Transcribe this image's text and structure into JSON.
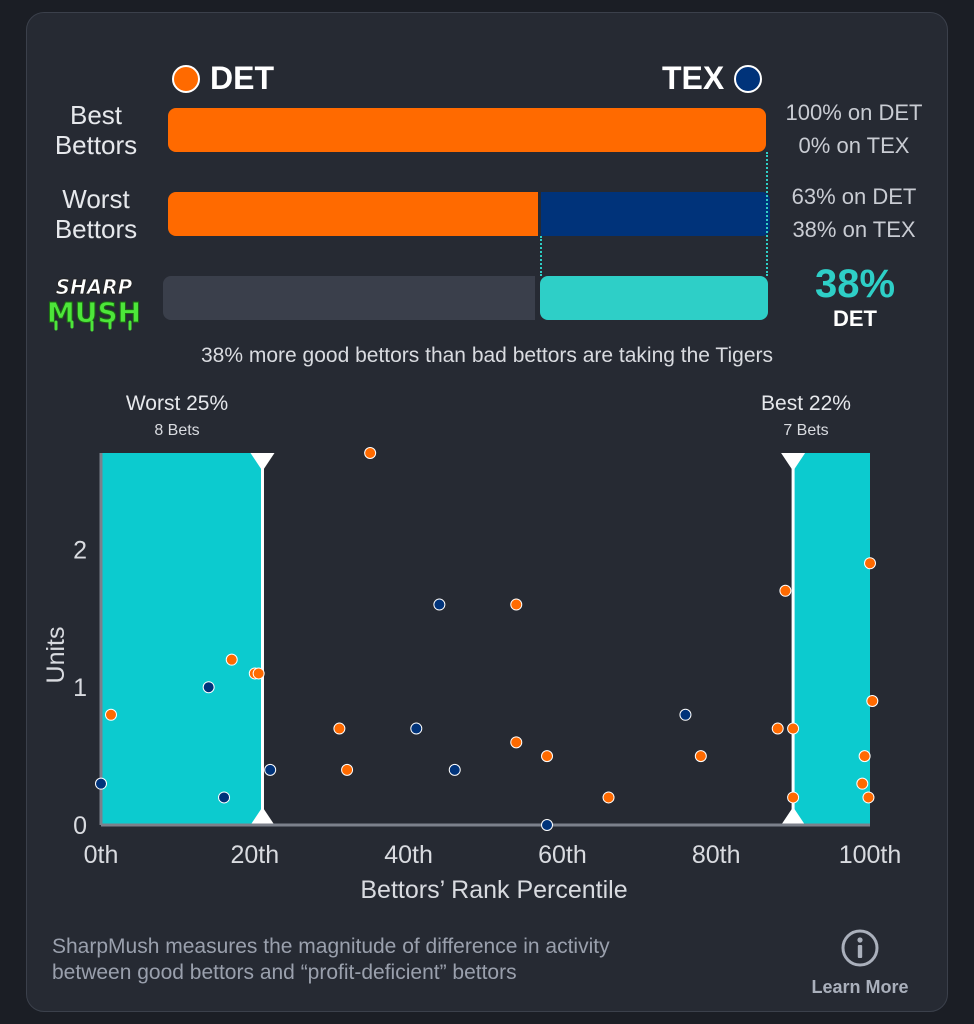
{
  "teams": {
    "left": {
      "abbr": "DET",
      "color": "#ff6a00"
    },
    "right": {
      "abbr": "TEX",
      "color": "#00337a"
    }
  },
  "rows": {
    "best": {
      "label_line1": "Best",
      "label_line2": "Bettors",
      "det_pct": 100,
      "tex_pct": 0,
      "det_text": "100% on DET",
      "tex_text": "0% on TEX"
    },
    "worst": {
      "label_line1": "Worst",
      "label_line2": "Bettors",
      "det_pct": 63,
      "tex_pct": 38,
      "det_text": "63% on DET",
      "tex_text": "38% on TEX"
    }
  },
  "sharpmush": {
    "logo_line1": "SHARP",
    "logo_line2": "MUSH",
    "value_pct": 38,
    "value_text": "38%",
    "team": "DET",
    "summary": "38% more good bettors than bad bettors are taking the Tigers"
  },
  "groups": {
    "worst": {
      "title": "Worst 25%",
      "bets": "8 Bets"
    },
    "best": {
      "title": "Best 22%",
      "bets": "7 Bets"
    }
  },
  "chart_data": {
    "type": "scatter",
    "xlabel": "Bettors’ Rank Percentile",
    "ylabel": "Units",
    "x_ticks": [
      "0th",
      "20th",
      "40th",
      "60th",
      "80th",
      "100th"
    ],
    "x_tick_values": [
      0,
      20,
      40,
      60,
      80,
      100
    ],
    "y_ticks": [
      "0",
      "1",
      "2"
    ],
    "y_tick_values": [
      0,
      1,
      2
    ],
    "xlim": [
      0,
      100
    ],
    "ylim": [
      0,
      2.7
    ],
    "worst_zone": [
      0,
      21
    ],
    "best_zone": [
      90,
      100
    ],
    "zone_color": "#0ccbcf",
    "series": [
      {
        "team": "DET",
        "color": "#ff6a00",
        "points": [
          [
            1.3,
            0.8
          ],
          [
            17,
            1.2
          ],
          [
            20,
            1.1
          ],
          [
            20.5,
            1.1
          ],
          [
            31,
            0.7
          ],
          [
            32,
            0.4
          ],
          [
            35,
            2.7
          ],
          [
            54,
            1.6
          ],
          [
            54,
            0.6
          ],
          [
            58,
            0.5
          ],
          [
            66,
            0.2
          ],
          [
            78,
            0.5
          ],
          [
            88,
            0.7
          ],
          [
            89,
            1.7
          ],
          [
            90,
            0.7
          ],
          [
            90,
            0.2
          ],
          [
            99,
            0.3
          ],
          [
            99.3,
            0.5
          ],
          [
            99.8,
            0.2
          ],
          [
            100,
            1.9
          ],
          [
            100.3,
            0.9
          ]
        ]
      },
      {
        "team": "TEX",
        "color": "#00337a",
        "points": [
          [
            0,
            0.3
          ],
          [
            14,
            1.0
          ],
          [
            16,
            0.2
          ],
          [
            22,
            0.4
          ],
          [
            41,
            0.7
          ],
          [
            44,
            1.6
          ],
          [
            46,
            0.4
          ],
          [
            58,
            0.0
          ],
          [
            76,
            0.8
          ]
        ]
      }
    ]
  },
  "footer": {
    "line1": "SharpMush measures the magnitude of difference in activity",
    "line2": "between good bettors and “profit-deficient” bettors",
    "learn_more": "Learn More",
    "info_icon": "info-icon"
  }
}
